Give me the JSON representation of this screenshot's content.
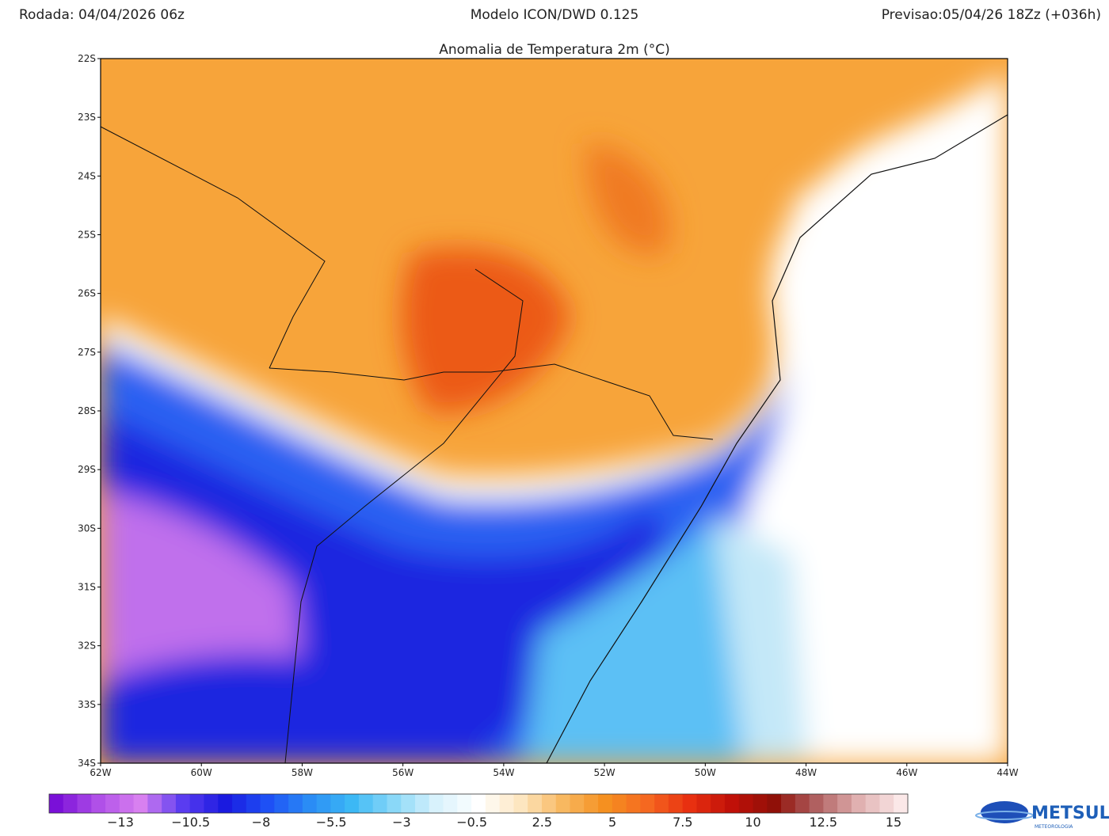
{
  "header": {
    "run": "Rodada: 04/04/2026 06z",
    "model": "Modelo ICON/DWD 0.125",
    "forecast": "Previsao:05/04/26 18Zz (+036h)",
    "title": "Anomalia de Temperatura 2m (°C)"
  },
  "map": {
    "lat_labels": [
      "22S",
      "23S",
      "24S",
      "25S",
      "26S",
      "27S",
      "28S",
      "29S",
      "30S",
      "31S",
      "32S",
      "33S",
      "34S"
    ],
    "lon_labels": [
      "62W",
      "60W",
      "58W",
      "56W",
      "54W",
      "52W",
      "50W",
      "48W",
      "46W",
      "44W"
    ]
  },
  "colorbar": {
    "labels": [
      "−13",
      "−10.5",
      "−8",
      "−5.5",
      "−3",
      "−0.5",
      "2.5",
      "5",
      "7.5",
      "10",
      "12.5",
      "15"
    ],
    "colors": [
      "#7a10d8",
      "#b050e8",
      "#d880f0",
      "#5a3cf0",
      "#1a1ae0",
      "#1e50f5",
      "#2a8cf5",
      "#3cb8f5",
      "#8ad8f8",
      "#d8f2fc",
      "#ffffff",
      "#fde6c0",
      "#f8b860",
      "#f59020",
      "#f56820",
      "#e83010",
      "#c01008",
      "#901008",
      "#b06060",
      "#e0b0b0",
      "#fbe8e8"
    ]
  },
  "logo": {
    "name": "METSUL",
    "tagline": "METEOROLOGIA"
  }
}
